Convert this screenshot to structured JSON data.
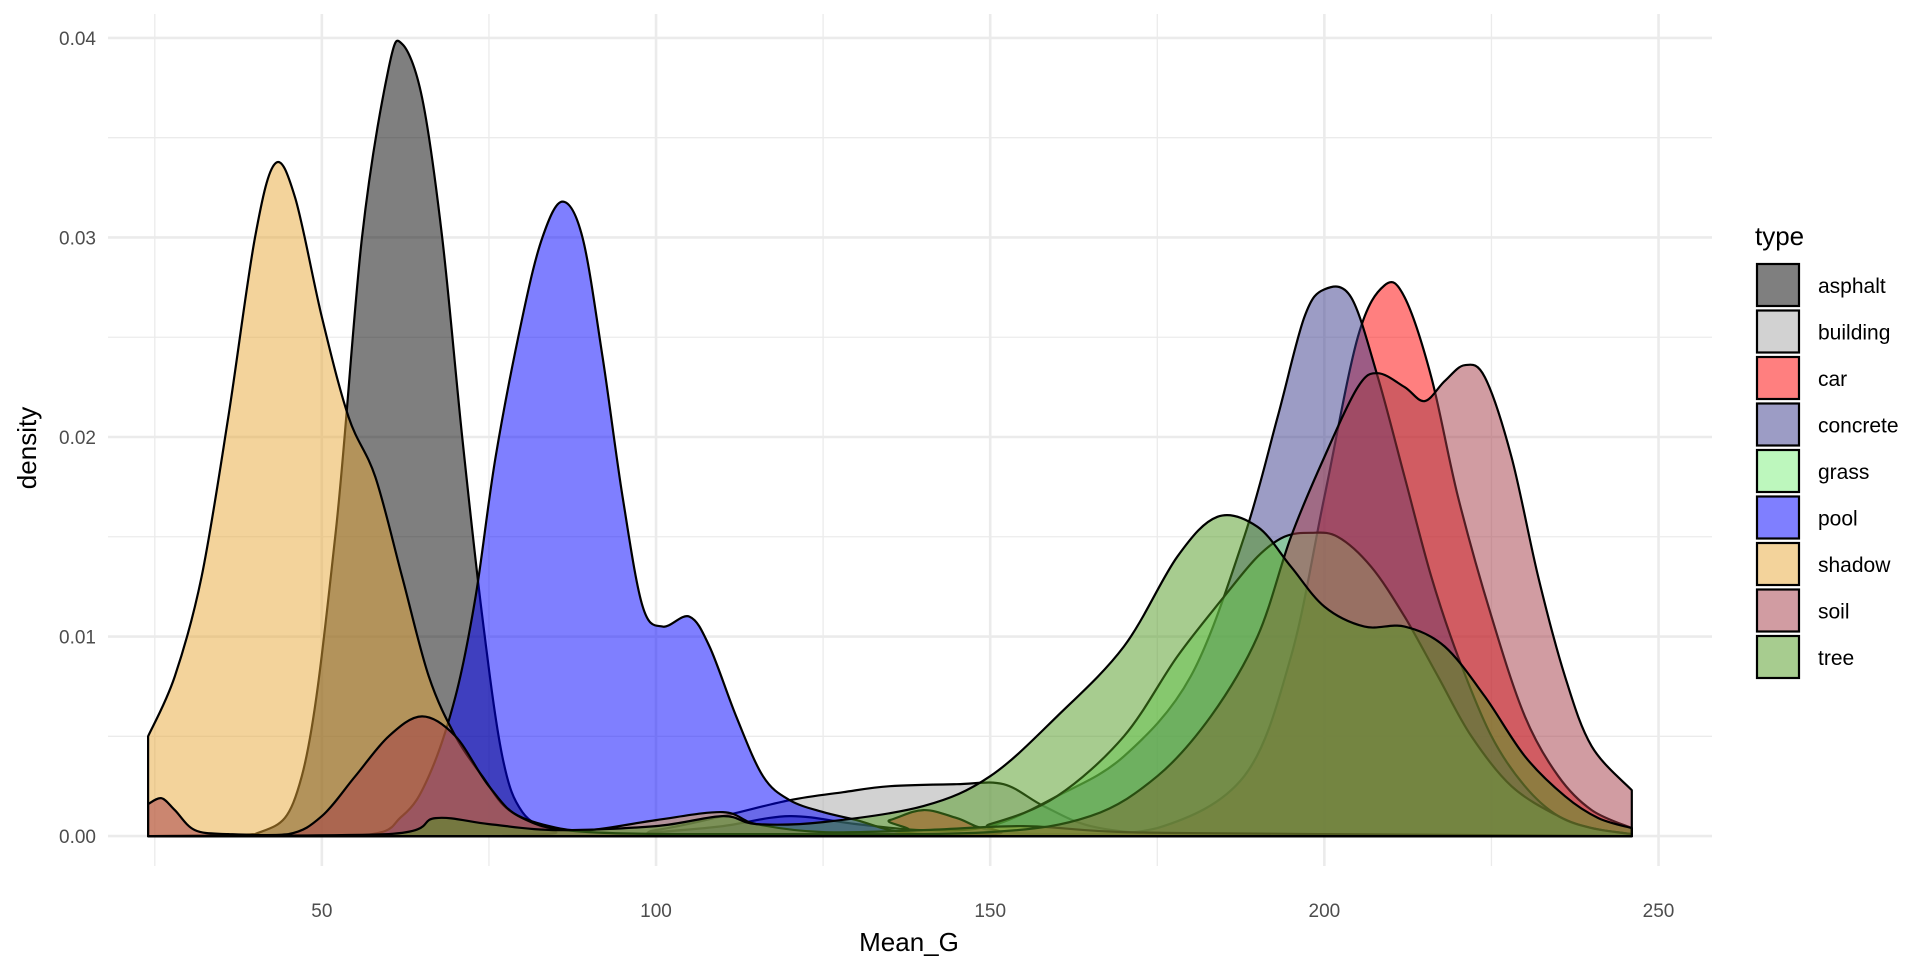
{
  "chart_data": {
    "type": "area",
    "subtype": "density",
    "xlabel": "Mean_G",
    "ylabel": "density",
    "xlim": [
      18,
      258
    ],
    "ylim": [
      -0.0015,
      0.0412
    ],
    "x_ticks": [
      50,
      100,
      150,
      200,
      250
    ],
    "x_tick_labels": [
      "50",
      "100",
      "150",
      "200",
      "250"
    ],
    "y_ticks": [
      0.0,
      0.01,
      0.02,
      0.03,
      0.04
    ],
    "y_tick_labels": [
      "0.00",
      "0.01",
      "0.02",
      "0.03",
      "0.04"
    ],
    "grid": true,
    "legend": {
      "title": "type",
      "position": "right"
    },
    "series": [
      {
        "name": "asphalt",
        "color": "#000000",
        "points": [
          [
            24,
            0
          ],
          [
            40,
            0.0001
          ],
          [
            47,
            0.003
          ],
          [
            52,
            0.015
          ],
          [
            56,
            0.03
          ],
          [
            60,
            0.0385
          ],
          [
            62,
            0.0397
          ],
          [
            65,
            0.037
          ],
          [
            68,
            0.03
          ],
          [
            71,
            0.02
          ],
          [
            74,
            0.011
          ],
          [
            77,
            0.004
          ],
          [
            80,
            0.0012
          ],
          [
            85,
            0.0002
          ],
          [
            90,
            0
          ],
          [
            246,
            0
          ]
        ]
      },
      {
        "name": "building",
        "color": "#a6a6a6",
        "points": [
          [
            24,
            0
          ],
          [
            90,
            0
          ],
          [
            100,
            0.0003
          ],
          [
            110,
            0.001
          ],
          [
            120,
            0.0018
          ],
          [
            128,
            0.0022
          ],
          [
            135,
            0.0025
          ],
          [
            145,
            0.0026
          ],
          [
            152,
            0.0026
          ],
          [
            158,
            0.0015
          ],
          [
            165,
            0.0005
          ],
          [
            175,
            0.0001
          ],
          [
            190,
            0
          ],
          [
            246,
            0
          ]
        ]
      },
      {
        "name": "car",
        "color": "#ff0000",
        "points": [
          [
            24,
            0
          ],
          [
            128,
            0
          ],
          [
            135,
            0.0008
          ],
          [
            140,
            0.0013
          ],
          [
            145,
            0.0009
          ],
          [
            150,
            0.0003
          ],
          [
            160,
            0.0001
          ],
          [
            175,
            0.0004
          ],
          [
            188,
            0.003
          ],
          [
            195,
            0.009
          ],
          [
            200,
            0.017
          ],
          [
            205,
            0.025
          ],
          [
            209,
            0.0276
          ],
          [
            212,
            0.027
          ],
          [
            216,
            0.023
          ],
          [
            220,
            0.017
          ],
          [
            225,
            0.011
          ],
          [
            230,
            0.006
          ],
          [
            235,
            0.003
          ],
          [
            240,
            0.0013
          ],
          [
            246,
            0.0004
          ]
        ]
      },
      {
        "name": "concrete",
        "color": "#3a3a8c",
        "points": [
          [
            24,
            0
          ],
          [
            90,
            0
          ],
          [
            100,
            0.0002
          ],
          [
            110,
            0.0005
          ],
          [
            120,
            0.001
          ],
          [
            130,
            0.0006
          ],
          [
            140,
            0.0003
          ],
          [
            150,
            0.0005
          ],
          [
            160,
            0.002
          ],
          [
            170,
            0.004
          ],
          [
            180,
            0.008
          ],
          [
            188,
            0.015
          ],
          [
            193,
            0.021
          ],
          [
            197,
            0.026
          ],
          [
            200,
            0.0274
          ],
          [
            204,
            0.027
          ],
          [
            208,
            0.023
          ],
          [
            212,
            0.018
          ],
          [
            216,
            0.013
          ],
          [
            220,
            0.009
          ],
          [
            225,
            0.005
          ],
          [
            230,
            0.0025
          ],
          [
            235,
            0.001
          ],
          [
            240,
            0.0004
          ],
          [
            246,
            0.0001
          ]
        ]
      },
      {
        "name": "grass",
        "color": "#7cf07c",
        "points": [
          [
            24,
            0
          ],
          [
            140,
            0
          ],
          [
            150,
            0.0006
          ],
          [
            160,
            0.002
          ],
          [
            170,
            0.005
          ],
          [
            178,
            0.009
          ],
          [
            185,
            0.012
          ],
          [
            190,
            0.014
          ],
          [
            194,
            0.015
          ],
          [
            198,
            0.0152
          ],
          [
            202,
            0.015
          ],
          [
            207,
            0.0135
          ],
          [
            212,
            0.011
          ],
          [
            217,
            0.008
          ],
          [
            222,
            0.005
          ],
          [
            228,
            0.0025
          ],
          [
            235,
            0.001
          ],
          [
            240,
            0.0004
          ],
          [
            246,
            0.0001
          ]
        ]
      },
      {
        "name": "pool",
        "color": "#0000ff",
        "points": [
          [
            24,
            0
          ],
          [
            55,
            0
          ],
          [
            62,
            0.001
          ],
          [
            66,
            0.003
          ],
          [
            70,
            0.007
          ],
          [
            73,
            0.012
          ],
          [
            76,
            0.019
          ],
          [
            80,
            0.026
          ],
          [
            83,
            0.03
          ],
          [
            86,
            0.0318
          ],
          [
            89,
            0.03
          ],
          [
            92,
            0.024
          ],
          [
            95,
            0.017
          ],
          [
            98,
            0.0115
          ],
          [
            101,
            0.0105
          ],
          [
            105,
            0.011
          ],
          [
            108,
            0.0095
          ],
          [
            112,
            0.006
          ],
          [
            116,
            0.003
          ],
          [
            120,
            0.0018
          ],
          [
            125,
            0.0012
          ],
          [
            130,
            0.0008
          ],
          [
            135,
            0.0003
          ],
          [
            140,
            0.0001
          ],
          [
            150,
            0
          ],
          [
            246,
            0
          ]
        ]
      },
      {
        "name": "shadow",
        "color": "#e8a838",
        "points": [
          [
            24,
            0.005
          ],
          [
            28,
            0.008
          ],
          [
            32,
            0.013
          ],
          [
            36,
            0.021
          ],
          [
            40,
            0.03
          ],
          [
            43,
            0.0337
          ],
          [
            46,
            0.032
          ],
          [
            50,
            0.026
          ],
          [
            54,
            0.021
          ],
          [
            58,
            0.018
          ],
          [
            62,
            0.013
          ],
          [
            66,
            0.008
          ],
          [
            70,
            0.005
          ],
          [
            74,
            0.003
          ],
          [
            78,
            0.0013
          ],
          [
            84,
            0.0005
          ],
          [
            90,
            0.0003
          ],
          [
            100,
            0.0008
          ],
          [
            110,
            0.0012
          ],
          [
            115,
            0.0006
          ],
          [
            125,
            0.0002
          ],
          [
            140,
            0.0003
          ],
          [
            155,
            0.0005
          ],
          [
            170,
            0.0002
          ],
          [
            200,
            0.0001
          ],
          [
            246,
            0
          ]
        ]
      },
      {
        "name": "soil",
        "color": "#a33a45",
        "points": [
          [
            24,
            0.0016
          ],
          [
            26,
            0.0019
          ],
          [
            28,
            0.0013
          ],
          [
            31,
            0.0003
          ],
          [
            36,
            0.0001
          ],
          [
            45,
            0.0001
          ],
          [
            50,
            0.001
          ],
          [
            55,
            0.003
          ],
          [
            60,
            0.005
          ],
          [
            65,
            0.006
          ],
          [
            70,
            0.005
          ],
          [
            75,
            0.0025
          ],
          [
            80,
            0.0009
          ],
          [
            90,
            0.0002
          ],
          [
            120,
            0.0001
          ],
          [
            150,
            0.0002
          ],
          [
            165,
            0.001
          ],
          [
            175,
            0.003
          ],
          [
            183,
            0.006
          ],
          [
            190,
            0.01
          ],
          [
            195,
            0.015
          ],
          [
            200,
            0.019
          ],
          [
            205,
            0.0225
          ],
          [
            208,
            0.0232
          ],
          [
            212,
            0.0225
          ],
          [
            215,
            0.0218
          ],
          [
            218,
            0.0228
          ],
          [
            221,
            0.0236
          ],
          [
            224,
            0.023
          ],
          [
            228,
            0.019
          ],
          [
            232,
            0.013
          ],
          [
            236,
            0.008
          ],
          [
            240,
            0.0045
          ],
          [
            246,
            0.0023
          ]
        ]
      },
      {
        "name": "tree",
        "color": "#4f9a1f",
        "points": [
          [
            24,
            0
          ],
          [
            60,
            0.0001
          ],
          [
            67,
            0.0009
          ],
          [
            75,
            0.0006
          ],
          [
            85,
            0.0003
          ],
          [
            100,
            0.0005
          ],
          [
            110,
            0.001
          ],
          [
            115,
            0.0006
          ],
          [
            125,
            0.0007
          ],
          [
            140,
            0.0015
          ],
          [
            150,
            0.003
          ],
          [
            160,
            0.006
          ],
          [
            170,
            0.0095
          ],
          [
            178,
            0.014
          ],
          [
            184,
            0.016
          ],
          [
            190,
            0.0155
          ],
          [
            195,
            0.0135
          ],
          [
            200,
            0.0115
          ],
          [
            206,
            0.0105
          ],
          [
            212,
            0.0105
          ],
          [
            218,
            0.0095
          ],
          [
            224,
            0.007
          ],
          [
            230,
            0.004
          ],
          [
            236,
            0.002
          ],
          [
            241,
            0.0009
          ],
          [
            246,
            0.0004
          ]
        ]
      }
    ]
  }
}
